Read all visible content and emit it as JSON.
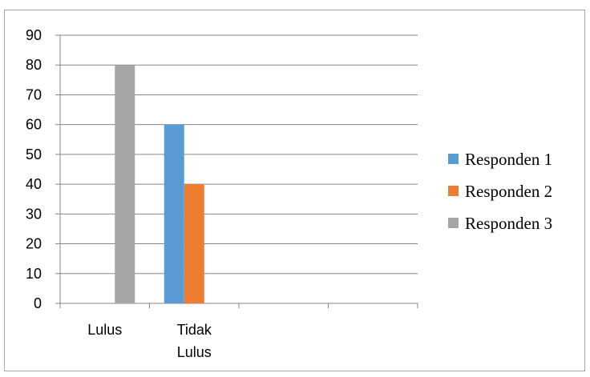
{
  "chart_data": {
    "type": "bar",
    "categories": [
      "Lulus",
      "Tidak\nLulus",
      "",
      ""
    ],
    "category_lines": [
      [
        "Lulus"
      ],
      [
        "Tidak",
        "Lulus"
      ],
      [],
      []
    ],
    "series": [
      {
        "name": "Responden 1",
        "color": "#5b9bd5",
        "values": [
          0,
          60,
          0,
          0
        ]
      },
      {
        "name": "Responden 2",
        "color": "#ed7d31",
        "values": [
          0,
          40,
          0,
          0
        ]
      },
      {
        "name": "Responden 3",
        "color": "#a5a5a5",
        "values": [
          80,
          0,
          0,
          0
        ]
      }
    ],
    "title": "",
    "xlabel": "",
    "ylabel": "",
    "ylim": [
      0,
      90
    ],
    "yticks": [
      0,
      10,
      20,
      30,
      40,
      50,
      60,
      70,
      80,
      90
    ],
    "grid": true,
    "legend": "right"
  }
}
